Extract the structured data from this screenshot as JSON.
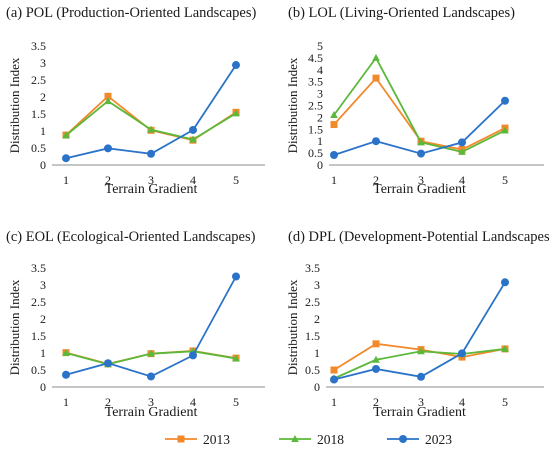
{
  "colors": {
    "2013": "#f28a2c",
    "2018": "#5bb83a",
    "2023": "#2a73c9"
  },
  "legend": [
    {
      "name": "2013",
      "marker": "square",
      "color": "#f28a2c"
    },
    {
      "name": "2018",
      "marker": "triangle",
      "color": "#5bb83a"
    },
    {
      "name": "2023",
      "marker": "circle",
      "color": "#2a73c9"
    }
  ],
  "chart_data": [
    {
      "type": "line",
      "title": "(a) POL (Production-Oriented Landscapes)",
      "xlabel": "Terrain Gradient",
      "ylabel": "Distribution Index",
      "categories": [
        "1",
        "2",
        "3",
        "4",
        "5"
      ],
      "ylim": [
        0,
        3.5
      ],
      "yticks": [
        "0",
        "0.5",
        "1",
        "1.5",
        "2",
        "2.5",
        "3",
        "3.5"
      ],
      "series": [
        {
          "name": "2013",
          "values": [
            0.88,
            2.02,
            1.02,
            0.73,
            1.55
          ]
        },
        {
          "name": "2018",
          "values": [
            0.87,
            1.88,
            1.04,
            0.75,
            1.52
          ]
        },
        {
          "name": "2023",
          "values": [
            0.2,
            0.49,
            0.33,
            1.03,
            2.94
          ]
        }
      ]
    },
    {
      "type": "line",
      "title": "(b) LOL (Living-Oriented Landscapes)",
      "xlabel": "Terrain Gradient",
      "ylabel": "Distribution Index",
      "categories": [
        "1",
        "2",
        "3",
        "4",
        "5"
      ],
      "ylim": [
        0,
        5
      ],
      "yticks": [
        "0",
        "0.5",
        "1",
        "1.5",
        "2",
        "2.5",
        "3",
        "3.5",
        "4",
        "4.5",
        "5"
      ],
      "series": [
        {
          "name": "2013",
          "values": [
            1.7,
            3.65,
            1.0,
            0.65,
            1.55
          ]
        },
        {
          "name": "2018",
          "values": [
            2.1,
            4.5,
            0.95,
            0.55,
            1.45
          ]
        },
        {
          "name": "2023",
          "values": [
            0.42,
            1.0,
            0.48,
            0.95,
            2.7
          ]
        }
      ]
    },
    {
      "type": "line",
      "title": "(c) EOL (Ecological-Oriented Landscapes)",
      "xlabel": "Terrain Gradient",
      "ylabel": "Distribution Index",
      "categories": [
        "1",
        "2",
        "3",
        "4",
        "5"
      ],
      "ylim": [
        0,
        3.5
      ],
      "yticks": [
        "0",
        "0.5",
        "1",
        "1.5",
        "2",
        "2.5",
        "3",
        "3.5"
      ],
      "series": [
        {
          "name": "2013",
          "values": [
            1.01,
            0.68,
            0.98,
            1.06,
            0.85
          ]
        },
        {
          "name": "2018",
          "values": [
            1.0,
            0.67,
            0.98,
            1.05,
            0.84
          ]
        },
        {
          "name": "2023",
          "values": [
            0.36,
            0.7,
            0.31,
            0.93,
            3.25
          ]
        }
      ]
    },
    {
      "type": "line",
      "title": "(d) DPL (Development-Potential Landscapes)",
      "xlabel": "Terrain Gradient",
      "ylabel": "Distribution Index",
      "categories": [
        "1",
        "2",
        "3",
        "4",
        "5"
      ],
      "ylim": [
        0,
        3.5
      ],
      "yticks": [
        "0",
        "0.5",
        "1",
        "1.5",
        "2",
        "2.5",
        "3",
        "3.5"
      ],
      "series": [
        {
          "name": "2013",
          "values": [
            0.5,
            1.27,
            1.1,
            0.88,
            1.12
          ]
        },
        {
          "name": "2018",
          "values": [
            0.25,
            0.8,
            1.05,
            0.97,
            1.12
          ]
        },
        {
          "name": "2023",
          "values": [
            0.22,
            0.53,
            0.3,
            0.99,
            3.08
          ]
        }
      ]
    }
  ]
}
